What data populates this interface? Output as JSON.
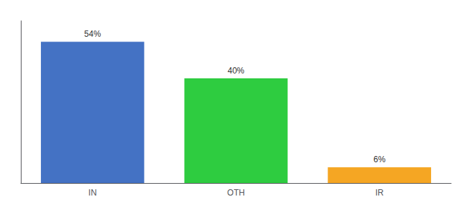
{
  "chart_data": {
    "type": "bar",
    "categories": [
      "IN",
      "OTH",
      "IR"
    ],
    "values": [
      54,
      40,
      6
    ],
    "value_labels": [
      "54%",
      "40%",
      "6%"
    ],
    "colors": [
      "#4472c4",
      "#2ecc40",
      "#f5a623"
    ],
    "ylim": [
      0,
      62
    ],
    "data_labels": true,
    "tick_labels": "x",
    "grid": false
  }
}
